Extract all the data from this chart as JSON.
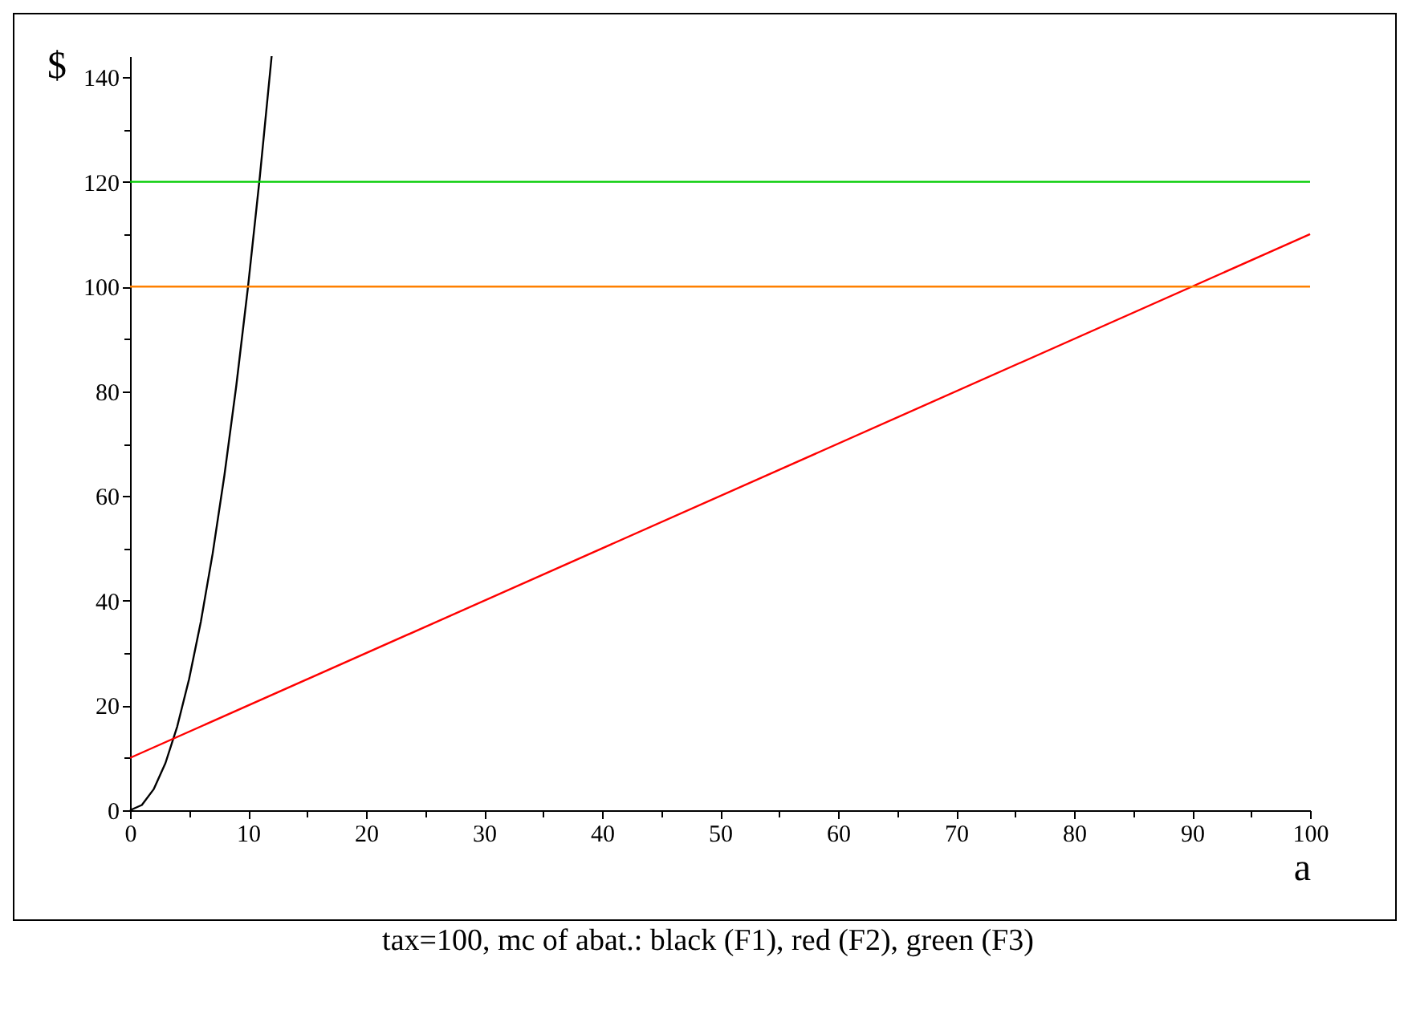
{
  "chart_data": {
    "type": "line",
    "xlabel": "a",
    "ylabel": "$",
    "annotations": [
      "tax=100, mc of abat.: black (F1), red (F2), green (F3)"
    ],
    "xlim": [
      0,
      100
    ],
    "ylim": [
      0,
      144
    ],
    "xticks": [
      0,
      {
        "value": 5,
        "label": null
      },
      10,
      {
        "value": 15,
        "label": null
      },
      20,
      {
        "value": 25,
        "label": null
      },
      30,
      {
        "value": 35,
        "label": null
      },
      40,
      {
        "value": 45,
        "label": null
      },
      50,
      {
        "value": 55,
        "label": null
      },
      60,
      {
        "value": 65,
        "label": null
      },
      70,
      {
        "value": 75,
        "label": null
      },
      80,
      {
        "value": 85,
        "label": null
      },
      90,
      {
        "value": 95,
        "label": null
      },
      100
    ],
    "yticks": [
      0,
      {
        "value": 10,
        "label": null
      },
      20,
      {
        "value": 30,
        "label": null
      },
      40,
      {
        "value": 50,
        "label": null
      },
      60,
      {
        "value": 70,
        "label": null
      },
      80,
      {
        "value": 90,
        "label": null
      },
      100,
      {
        "value": 110,
        "label": null
      },
      120,
      {
        "value": 130,
        "label": null
      },
      140
    ],
    "grid": false,
    "marker": "none",
    "line_style": "solid",
    "series": [
      {
        "color": "#000000",
        "x": [
          0,
          1,
          2,
          3,
          4,
          5,
          6,
          7,
          8,
          9,
          10,
          11,
          12
        ],
        "values": [
          0,
          1,
          4,
          9,
          16,
          25,
          36,
          49,
          64,
          81,
          100,
          121,
          144
        ]
      },
      {
        "color": "#ff0000",
        "x": [
          0,
          100
        ],
        "values": [
          10,
          110
        ]
      },
      {
        "color": "#00cc00",
        "x": [
          0,
          100
        ],
        "values": [
          120,
          120
        ]
      },
      {
        "color": "#ff8000",
        "x": [
          0,
          100
        ],
        "values": [
          100,
          100
        ]
      }
    ]
  }
}
